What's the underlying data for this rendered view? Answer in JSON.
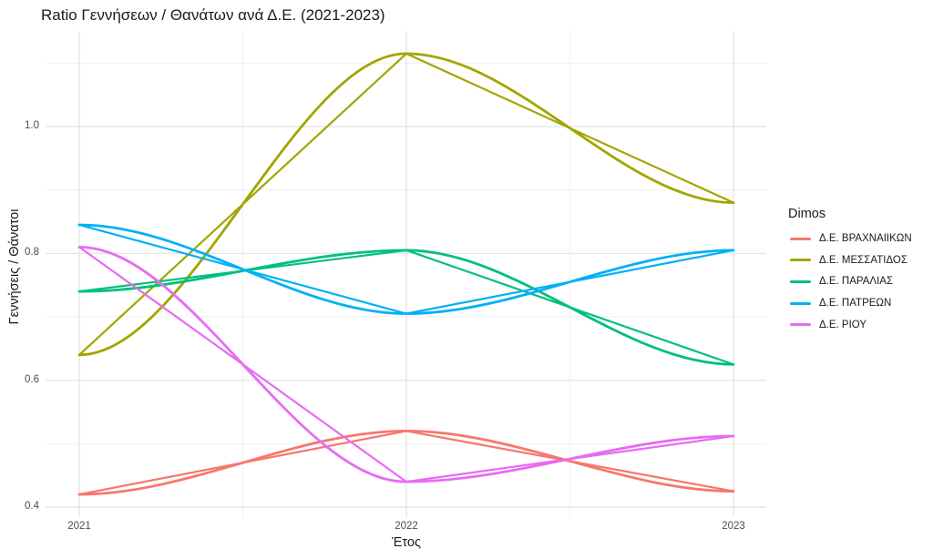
{
  "chart_data": {
    "type": "line",
    "title": "Ratio Γεννήσεων / Θανάτων ανά Δ.Ε. (2021-2023)",
    "xlabel": "Έτος",
    "ylabel": "Γεννήσεις / Θάνατοι",
    "categories": [
      "2021",
      "2022",
      "2023"
    ],
    "series": [
      {
        "name": "Δ.Ε. ΒΡΑΧΝΑΙΙΚΩΝ",
        "color": "#F8766D",
        "values": [
          0.42,
          0.52,
          0.425
        ]
      },
      {
        "name": "Δ.Ε. ΜΕΣΣΑΤΙΔΟΣ",
        "color": "#A3A500",
        "values": [
          0.64,
          1.115,
          0.88
        ]
      },
      {
        "name": "Δ.Ε. ΠΑΡΑΛΙΑΣ",
        "color": "#00BF7D",
        "values": [
          0.74,
          0.805,
          0.625
        ]
      },
      {
        "name": "Δ.Ε. ΠΑΤΡΕΩΝ",
        "color": "#00B0F6",
        "values": [
          0.845,
          0.705,
          0.805
        ]
      },
      {
        "name": "Δ.Ε. ΡΙΟΥ",
        "color": "#E76BF3",
        "values": [
          0.81,
          0.44,
          0.512
        ]
      }
    ],
    "y_ticks": [
      0.4,
      0.6,
      0.8,
      1.0
    ],
    "y_minor_gridlines": [
      0.5,
      0.7,
      0.9,
      1.1
    ],
    "x_minor_gridlines": [
      0.5,
      1.5
    ],
    "ylim": [
      0.385,
      1.15
    ],
    "grid": true,
    "legend_title": "Dimos",
    "legend_position": "right",
    "style_note": "each series drawn twice: straight segments and a smoothed curve through the same points",
    "colors": {
      "grid_major": "#e2e2e2",
      "grid_minor": "#f0f0f0",
      "tick_text": "#4d4d4d",
      "text": "#1a1a1a"
    }
  }
}
